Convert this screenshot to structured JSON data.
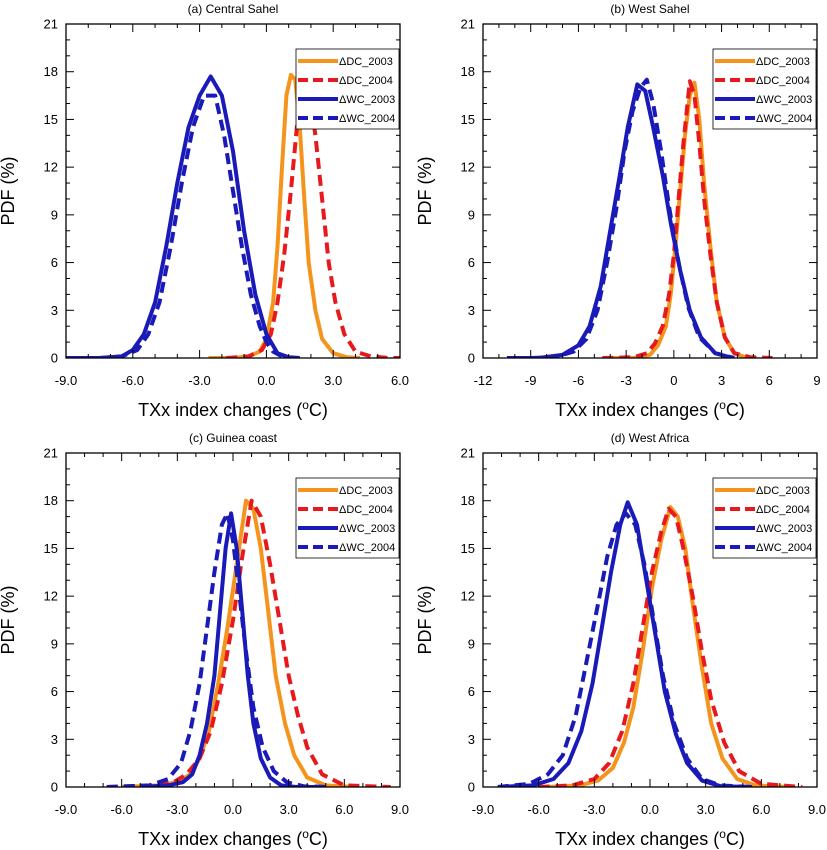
{
  "figure": {
    "xlabel": "TXx index changes (",
    "xlabel_sup": "o",
    "xlabel_unit": "C)",
    "ylabel": "PDF (%)"
  },
  "legend": [
    {
      "name": "ΔDC_2003",
      "color": "#f4941c",
      "dash": false
    },
    {
      "name": "ΔDC_2004",
      "color": "#e8191c",
      "dash": true
    },
    {
      "name": "ΔWC_2003",
      "color": "#1a1ab8",
      "dash": false
    },
    {
      "name": "ΔWC_2004",
      "color": "#1a1ab8",
      "dash": true
    }
  ],
  "chart_data": [
    {
      "type": "line",
      "title": "(a) Central Sahel",
      "xlim": [
        -9,
        6
      ],
      "xticks": [
        "-9.0",
        "-6.0",
        "-3.0",
        "0.0",
        "3.0",
        "6.0"
      ],
      "ylim": [
        0,
        21
      ],
      "yticks": [
        "0",
        "3",
        "6",
        "9",
        "12",
        "15",
        "18",
        "21"
      ],
      "legend_position": "top-right",
      "series": [
        {
          "name": "ΔDC_2003",
          "x": [
            -2.6,
            -1.5,
            -0.8,
            -0.3,
            0,
            0.3,
            0.5,
            0.7,
            0.9,
            1.1,
            1.3,
            1.5,
            1.7,
            1.9,
            2.2,
            2.5,
            3.0,
            3.6,
            4.2
          ],
          "y": [
            0,
            0,
            0.1,
            0.4,
            1.2,
            3.5,
            7,
            12,
            16.5,
            17.8,
            17.5,
            14.5,
            10,
            6,
            3,
            1.2,
            0.3,
            0.05,
            0
          ]
        },
        {
          "name": "ΔDC_2004",
          "x": [
            -1.8,
            -0.8,
            -0.2,
            0.2,
            0.5,
            0.8,
            1.1,
            1.4,
            1.6,
            1.9,
            2.2,
            2.5,
            2.8,
            3.1,
            3.5,
            4.0,
            4.7,
            5.5,
            6.0
          ],
          "y": [
            0,
            0.1,
            0.5,
            1.5,
            3.5,
            6.5,
            10.5,
            15,
            18,
            17,
            14,
            10,
            6,
            3.5,
            1.5,
            0.4,
            0.1,
            0,
            0
          ]
        },
        {
          "name": "ΔWC_2003",
          "x": [
            -9,
            -7.5,
            -6.5,
            -6.0,
            -5.5,
            -5.0,
            -4.5,
            -4.0,
            -3.5,
            -3.0,
            -2.5,
            -2.0,
            -1.5,
            -1.0,
            -0.5,
            0,
            0.5,
            1.0,
            1.5
          ],
          "y": [
            0,
            0,
            0.1,
            0.5,
            1.5,
            3.5,
            7,
            11,
            14.5,
            16.5,
            17.7,
            16.5,
            13,
            8,
            4,
            1.5,
            0.3,
            0.05,
            0
          ]
        },
        {
          "name": "ΔWC_2004",
          "x": [
            -7.5,
            -6.5,
            -5.8,
            -5.3,
            -4.8,
            -4.3,
            -3.8,
            -3.3,
            -2.8,
            -2.3,
            -1.9,
            -1.5,
            -1.1,
            -0.7,
            -0.3,
            0,
            0.3,
            0.7,
            1.2
          ],
          "y": [
            0,
            0.1,
            0.5,
            1.5,
            3.5,
            7,
            11,
            14.5,
            16.5,
            16.5,
            14,
            10.5,
            7,
            4,
            2,
            1,
            0.4,
            0.1,
            0
          ]
        }
      ]
    },
    {
      "type": "line",
      "title": "(b) West Sahel",
      "xlim": [
        -12,
        9
      ],
      "xticks": [
        "-12",
        "-9",
        "-6",
        "-3",
        "0",
        "3",
        "6",
        "9"
      ],
      "ylim": [
        0,
        21
      ],
      "yticks": [
        "0",
        "3",
        "6",
        "9",
        "12",
        "15",
        "18",
        "21"
      ],
      "legend_position": "top-right",
      "series": [
        {
          "name": "ΔDC_2003",
          "x": [
            -4.2,
            -2.5,
            -1.5,
            -1.0,
            -0.5,
            -0.2,
            0.1,
            0.4,
            0.7,
            1.0,
            1.3,
            1.6,
            1.9,
            2.3,
            2.7,
            3.2,
            3.8,
            4.5,
            5.2
          ],
          "y": [
            0,
            0,
            0.2,
            0.8,
            2,
            4,
            7,
            10.5,
            14,
            16.5,
            17.3,
            15,
            11,
            7,
            3.5,
            1.3,
            0.3,
            0.05,
            0
          ]
        },
        {
          "name": "ΔDC_2004",
          "x": [
            -4.5,
            -2.5,
            -1.7,
            -1.2,
            -0.7,
            -0.3,
            0,
            0.3,
            0.6,
            1.0,
            1.3,
            1.6,
            1.9,
            2.3,
            2.7,
            3.2,
            3.8,
            4.8,
            6.2
          ],
          "y": [
            0,
            0.05,
            0.3,
            0.9,
            2,
            4,
            6.5,
            10,
            13.5,
            17.4,
            16.5,
            13.5,
            10,
            6.5,
            3.5,
            1.3,
            0.3,
            0.05,
            0
          ]
        },
        {
          "name": "ΔWC_2003",
          "x": [
            -10.5,
            -8.5,
            -7.0,
            -6.0,
            -5.3,
            -4.6,
            -4.0,
            -3.4,
            -2.9,
            -2.3,
            -1.8,
            -1.3,
            -0.7,
            -0.2,
            0.4,
            1.0,
            1.7,
            2.6,
            3.7
          ],
          "y": [
            0,
            0,
            0.2,
            0.8,
            2,
            4.5,
            8,
            11.5,
            14.5,
            17.2,
            16.8,
            14.5,
            11.5,
            8.5,
            5.5,
            3,
            1.3,
            0.3,
            0
          ]
        },
        {
          "name": "ΔWC_2004",
          "x": [
            -9.0,
            -7.5,
            -6.3,
            -5.5,
            -4.8,
            -4.2,
            -3.6,
            -3.1,
            -2.6,
            -2.1,
            -1.7,
            -1.3,
            -0.8,
            -0.3,
            0.3,
            0.9,
            1.6,
            2.6,
            3.8
          ],
          "y": [
            0,
            0.05,
            0.4,
            1.2,
            3,
            6,
            9.5,
            13,
            15.5,
            17,
            17.5,
            16,
            13,
            9.5,
            6,
            3.2,
            1.3,
            0.3,
            0
          ]
        }
      ]
    },
    {
      "type": "line",
      "title": "(c) Guinea coast",
      "xlim": [
        -9,
        9
      ],
      "xticks": [
        "-9.0",
        "-6.0",
        "-3.0",
        "0.0",
        "3.0",
        "6.0",
        "9.0"
      ],
      "ylim": [
        0,
        21
      ],
      "yticks": [
        "0",
        "3",
        "6",
        "9",
        "12",
        "15",
        "18",
        "21"
      ],
      "legend_position": "top-right",
      "series": [
        {
          "name": "ΔDC_2003",
          "x": [
            -6.0,
            -4.0,
            -3.0,
            -2.3,
            -1.8,
            -1.3,
            -0.8,
            -0.3,
            0.2,
            0.7,
            1.1,
            1.5,
            1.9,
            2.3,
            2.8,
            3.3,
            4.0,
            5.0,
            6.5
          ],
          "y": [
            0,
            0.1,
            0.3,
            0.8,
            1.8,
            3.5,
            6.5,
            10,
            14,
            18,
            17.5,
            15,
            11,
            7,
            4,
            2,
            0.6,
            0.1,
            0
          ]
        },
        {
          "name": "ΔDC_2004",
          "x": [
            -6.8,
            -4.5,
            -3.2,
            -2.5,
            -1.8,
            -1.2,
            -0.6,
            0,
            0.5,
            1.0,
            1.5,
            2.0,
            2.5,
            3.0,
            3.5,
            4.0,
            4.8,
            6.0,
            8.5
          ],
          "y": [
            0,
            0.1,
            0.3,
            0.8,
            1.8,
            3.5,
            6.5,
            10.5,
            14.5,
            18,
            17,
            14,
            10.5,
            7,
            4.5,
            2.5,
            0.8,
            0.1,
            0
          ]
        },
        {
          "name": "ΔWC_2003",
          "x": [
            -5.0,
            -3.5,
            -2.7,
            -2.2,
            -1.8,
            -1.4,
            -1.0,
            -0.7,
            -0.4,
            -0.1,
            0.2,
            0.5,
            0.8,
            1.1,
            1.5,
            2.0,
            2.6,
            3.4,
            4.5
          ],
          "y": [
            0,
            0.1,
            0.3,
            0.8,
            2,
            4,
            7,
            11,
            15,
            17.2,
            15,
            11,
            7,
            4,
            1.8,
            0.6,
            0.1,
            0,
            0
          ]
        },
        {
          "name": "ΔWC_2004",
          "x": [
            -6.8,
            -4.5,
            -3.5,
            -2.8,
            -2.3,
            -1.8,
            -1.4,
            -1.0,
            -0.6,
            -0.3,
            0,
            0.3,
            0.7,
            1.1,
            1.6,
            2.2,
            2.9,
            3.8,
            5.2
          ],
          "y": [
            0,
            0.1,
            0.5,
            1.5,
            3.5,
            6.5,
            10,
            13.5,
            16.5,
            17.2,
            15.5,
            12.5,
            8.5,
            5,
            2.5,
            1,
            0.3,
            0.05,
            0
          ]
        }
      ]
    },
    {
      "type": "line",
      "title": "(d) West Africa",
      "xlim": [
        -9,
        9
      ],
      "xticks": [
        "-9.0",
        "-6.0",
        "-3.0",
        "0.0",
        "3.0",
        "6.0",
        "9.0"
      ],
      "ylim": [
        0,
        21
      ],
      "yticks": [
        "0",
        "3",
        "6",
        "9",
        "12",
        "15",
        "18",
        "21"
      ],
      "legend_position": "top-right",
      "series": [
        {
          "name": "ΔDC_2003",
          "x": [
            -5.5,
            -3.8,
            -2.8,
            -2.0,
            -1.4,
            -0.9,
            -0.4,
            0.1,
            0.6,
            1.1,
            1.5,
            1.9,
            2.3,
            2.8,
            3.3,
            3.9,
            4.7,
            5.7,
            7.5
          ],
          "y": [
            0,
            0.1,
            0.4,
            1.2,
            2.8,
            5,
            8.5,
            12.5,
            15.5,
            17.6,
            17,
            15,
            11.5,
            7.5,
            4,
            1.8,
            0.5,
            0.1,
            0
          ]
        },
        {
          "name": "ΔDC_2004",
          "x": [
            -6.0,
            -4.2,
            -3.0,
            -2.2,
            -1.5,
            -0.9,
            -0.4,
            0.1,
            0.6,
            1.0,
            1.4,
            1.8,
            2.3,
            2.8,
            3.3,
            4.0,
            4.8,
            6.0,
            8.2
          ],
          "y": [
            0,
            0.1,
            0.5,
            1.5,
            3.5,
            6.5,
            10,
            13.5,
            16,
            17.5,
            17,
            15,
            12,
            8.5,
            5.5,
            2.8,
            1,
            0.2,
            0
          ]
        },
        {
          "name": "ΔWC_2003",
          "x": [
            -8.2,
            -6.3,
            -5.2,
            -4.4,
            -3.7,
            -3.1,
            -2.6,
            -2.1,
            -1.6,
            -1.2,
            -0.7,
            -0.2,
            0.3,
            0.8,
            1.4,
            2.0,
            2.8,
            3.8,
            5.5
          ],
          "y": [
            0,
            0.1,
            0.5,
            1.5,
            3.5,
            6.5,
            10,
            13.5,
            16.5,
            17.9,
            16.5,
            13,
            9.5,
            6,
            3.3,
            1.5,
            0.4,
            0.05,
            0
          ]
        },
        {
          "name": "ΔWC_2004",
          "x": [
            -8.2,
            -6.5,
            -5.5,
            -4.7,
            -4.0,
            -3.4,
            -2.8,
            -2.3,
            -1.8,
            -1.3,
            -0.8,
            -0.3,
            0.2,
            0.7,
            1.3,
            2.0,
            2.8,
            3.8,
            5.5
          ],
          "y": [
            0,
            0.2,
            0.8,
            2,
            4.5,
            8,
            11.5,
            14.5,
            16.5,
            17.2,
            16.5,
            14,
            10.5,
            7,
            4,
            1.8,
            0.5,
            0.1,
            0
          ]
        }
      ]
    }
  ]
}
